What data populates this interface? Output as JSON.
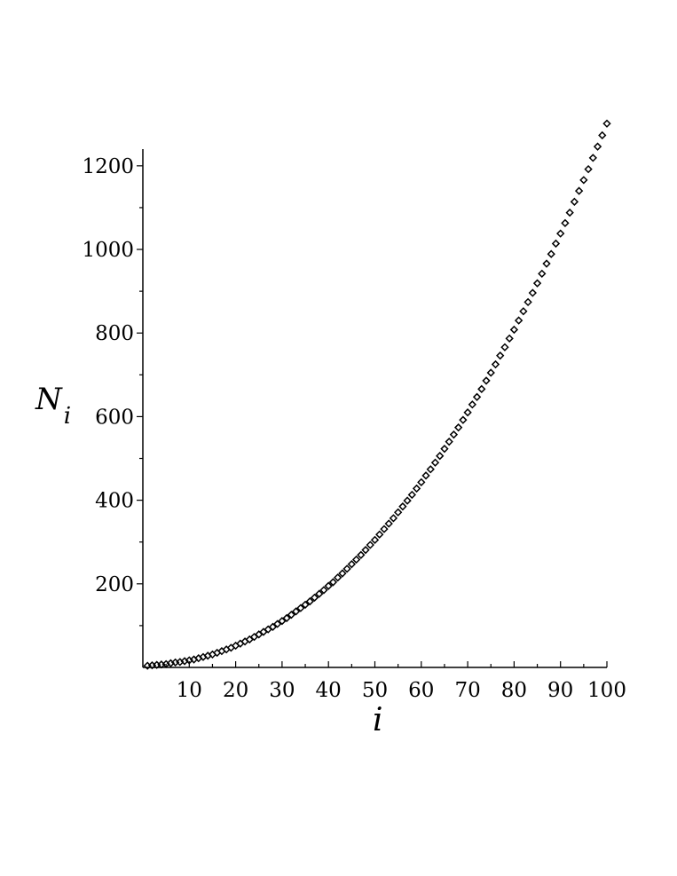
{
  "chart_data": {
    "type": "scatter",
    "marker": "diamond",
    "marker_color": "#000000",
    "background": "#ffffff",
    "xlabel": "i",
    "ylabel": {
      "main": "N",
      "subscript": "i"
    },
    "xlim": [
      0,
      100
    ],
    "ylim": [
      0,
      1240
    ],
    "x_ticks": [
      10,
      20,
      30,
      40,
      50,
      60,
      70,
      80,
      90,
      100
    ],
    "x_tick_labels": [
      "10",
      "20",
      "30",
      "40",
      "50",
      "60",
      "70",
      "80",
      "90",
      "100"
    ],
    "y_ticks": [
      200,
      400,
      600,
      800,
      1000,
      1200
    ],
    "y_tick_labels": [
      "200",
      "400",
      "600",
      "800",
      "1000",
      "1200"
    ],
    "grid": false,
    "legend": "none",
    "series": [
      {
        "x": [
          1,
          2,
          3,
          4,
          5,
          6,
          7,
          8,
          9,
          10,
          11,
          12,
          13,
          14,
          15,
          16,
          17,
          18,
          19,
          20,
          21,
          22,
          23,
          24,
          25,
          26,
          27,
          28,
          29,
          30,
          31,
          32,
          33,
          34,
          35,
          36,
          37,
          38,
          39,
          40,
          41,
          42,
          43,
          44,
          45,
          46,
          47,
          48,
          49,
          50,
          51,
          52,
          53,
          54,
          55,
          56,
          57,
          58,
          59,
          60,
          61,
          62,
          63,
          64,
          65,
          66,
          67,
          68,
          69,
          70,
          71,
          72,
          73,
          74,
          75,
          76,
          77,
          78,
          79,
          80,
          81,
          82,
          83,
          84,
          85,
          86,
          87,
          88,
          89,
          90,
          91,
          92,
          93,
          94,
          95,
          96,
          97,
          98,
          99,
          100
        ],
        "values": [
          4,
          5,
          6,
          7,
          8,
          10,
          12,
          13,
          15,
          17,
          19,
          22,
          25,
          28,
          31,
          35,
          39,
          43,
          47,
          52,
          57,
          62,
          67,
          73,
          79,
          85,
          91,
          97,
          104,
          111,
          118,
          126,
          134,
          142,
          150,
          158,
          167,
          176,
          185,
          195,
          204,
          215,
          225,
          236,
          247,
          258,
          269,
          281,
          293,
          305,
          318,
          331,
          344,
          357,
          371,
          385,
          399,
          413,
          428,
          443,
          459,
          474,
          490,
          506,
          523,
          540,
          557,
          574,
          592,
          610,
          629,
          647,
          666,
          686,
          705,
          725,
          746,
          766,
          787,
          808,
          830,
          852,
          874,
          896,
          919,
          942,
          966,
          989,
          1014,
          1038,
          1063,
          1088,
          1114,
          1140,
          1166,
          1192,
          1219,
          1246,
          1273,
          1301
        ]
      }
    ]
  }
}
